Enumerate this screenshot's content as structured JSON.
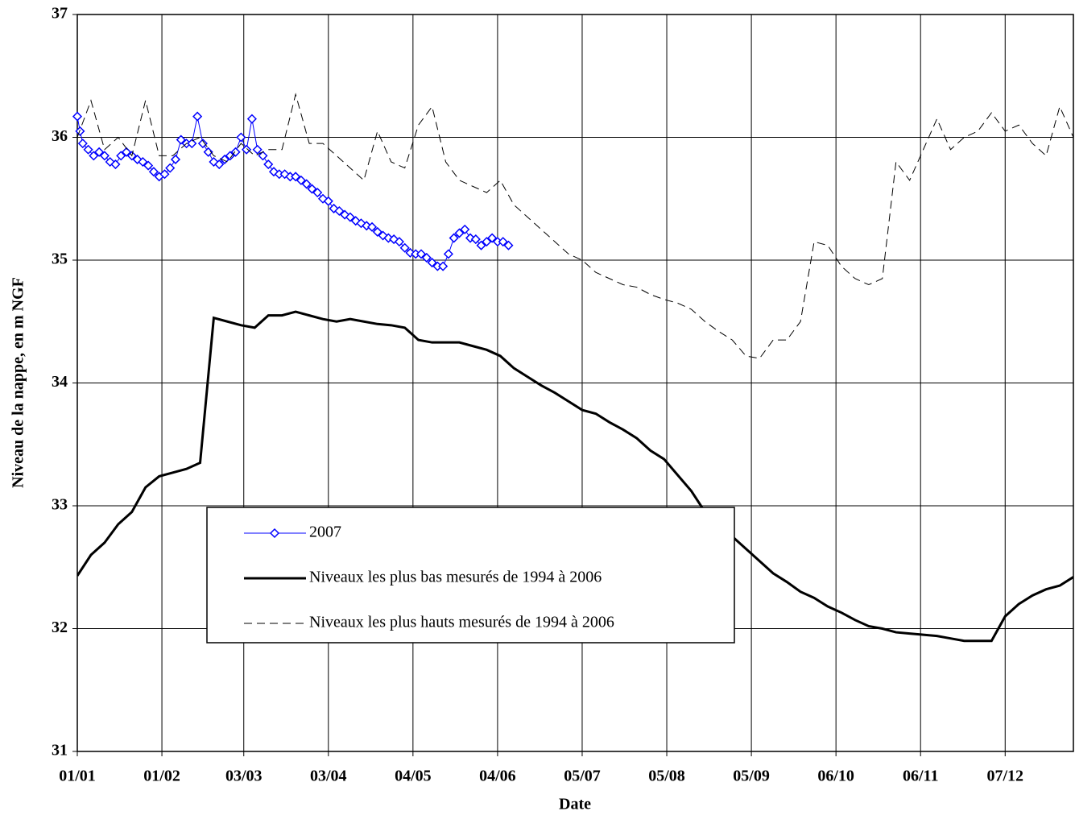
{
  "chart_data": {
    "type": "line",
    "x_label": "Date",
    "y_label": "Niveau de la nappe, en m NGF",
    "xlim": [
      0,
      365
    ],
    "ylim": [
      31,
      37
    ],
    "xticks": [
      {
        "value": 0,
        "label": "01/01"
      },
      {
        "value": 31,
        "label": "01/02"
      },
      {
        "value": 61,
        "label": "03/03"
      },
      {
        "value": 92,
        "label": "03/04"
      },
      {
        "value": 123,
        "label": "04/05"
      },
      {
        "value": 154,
        "label": "04/06"
      },
      {
        "value": 185,
        "label": "05/07"
      },
      {
        "value": 216,
        "label": "05/08"
      },
      {
        "value": 247,
        "label": "05/09"
      },
      {
        "value": 278,
        "label": "06/10"
      },
      {
        "value": 309,
        "label": "06/11"
      },
      {
        "value": 340,
        "label": "07/12"
      }
    ],
    "yticks": [
      31,
      32,
      33,
      34,
      35,
      36,
      37
    ],
    "grid": true,
    "series": [
      {
        "name": "2007",
        "color": "#0000ff",
        "line_style": "solid",
        "line_width": 1,
        "marker": "diamond",
        "x": [
          0,
          1,
          2,
          4,
          6,
          8,
          10,
          12,
          14,
          16,
          18,
          20,
          22,
          24,
          26,
          28,
          30,
          32,
          34,
          36,
          38,
          40,
          42,
          44,
          46,
          48,
          50,
          52,
          54,
          56,
          58,
          60,
          62,
          64,
          66,
          68,
          70,
          72,
          74,
          76,
          78,
          80,
          82,
          84,
          86,
          88,
          90,
          92,
          94,
          96,
          98,
          100,
          102,
          104,
          106,
          108,
          110,
          112,
          114,
          116,
          118,
          120,
          122,
          124,
          126,
          128,
          130,
          132,
          134,
          136,
          138,
          140,
          142,
          144,
          146,
          148,
          150,
          152,
          154,
          156,
          158
        ],
        "values": [
          36.17,
          36.05,
          35.95,
          35.9,
          35.85,
          35.88,
          35.85,
          35.8,
          35.78,
          35.85,
          35.88,
          35.85,
          35.82,
          35.8,
          35.77,
          35.72,
          35.68,
          35.7,
          35.75,
          35.82,
          35.98,
          35.95,
          35.95,
          36.17,
          35.95,
          35.88,
          35.8,
          35.78,
          35.82,
          35.85,
          35.88,
          36.0,
          35.9,
          36.15,
          35.9,
          35.85,
          35.78,
          35.72,
          35.7,
          35.7,
          35.68,
          35.68,
          35.65,
          35.62,
          35.58,
          35.55,
          35.5,
          35.48,
          35.42,
          35.4,
          35.37,
          35.35,
          35.32,
          35.3,
          35.28,
          35.27,
          35.23,
          35.2,
          35.18,
          35.17,
          35.15,
          35.1,
          35.06,
          35.05,
          35.05,
          35.02,
          34.98,
          34.95,
          34.95,
          35.05,
          35.18,
          35.22,
          35.25,
          35.18,
          35.17,
          35.12,
          35.15,
          35.18,
          35.15,
          35.15,
          35.12
        ]
      },
      {
        "name": "Niveaux les plus bas mesurés de 1994 à 2006",
        "color": "#000000",
        "line_style": "solid",
        "line_width": 3,
        "marker": "none",
        "x": [
          0,
          5,
          10,
          15,
          20,
          25,
          30,
          35,
          40,
          45,
          50,
          55,
          60,
          65,
          70,
          75,
          80,
          85,
          90,
          95,
          100,
          105,
          110,
          115,
          120,
          125,
          130,
          135,
          140,
          145,
          150,
          155,
          160,
          165,
          170,
          175,
          180,
          185,
          190,
          195,
          200,
          205,
          210,
          215,
          220,
          225,
          230,
          235,
          240,
          245,
          250,
          255,
          260,
          265,
          270,
          275,
          280,
          285,
          290,
          295,
          300,
          305,
          310,
          315,
          320,
          325,
          330,
          335,
          340,
          345,
          350,
          355,
          360,
          365
        ],
        "values": [
          32.43,
          32.6,
          32.7,
          32.85,
          32.95,
          33.15,
          33.24,
          33.27,
          33.3,
          33.35,
          34.53,
          34.5,
          34.47,
          34.45,
          34.55,
          34.55,
          34.58,
          34.55,
          34.52,
          34.5,
          34.52,
          34.5,
          34.48,
          34.47,
          34.45,
          34.35,
          34.33,
          34.33,
          34.33,
          34.3,
          34.27,
          34.22,
          34.12,
          34.05,
          33.98,
          33.92,
          33.85,
          33.78,
          33.75,
          33.68,
          33.62,
          33.55,
          33.45,
          33.38,
          33.25,
          33.12,
          32.95,
          32.85,
          32.75,
          32.65,
          32.55,
          32.45,
          32.38,
          32.3,
          32.25,
          32.18,
          32.13,
          32.07,
          32.02,
          32.0,
          31.97,
          31.96,
          31.95,
          31.94,
          31.92,
          31.9,
          31.9,
          31.9,
          32.1,
          32.2,
          32.27,
          32.32,
          32.35,
          32.42
        ]
      },
      {
        "name": "Niveaux les plus hauts mesurés de 1994 à 2006",
        "color": "#000000",
        "line_style": "dashed",
        "line_width": 1,
        "marker": "none",
        "x": [
          0,
          5,
          10,
          15,
          20,
          25,
          30,
          35,
          40,
          45,
          50,
          55,
          60,
          65,
          70,
          75,
          80,
          85,
          90,
          95,
          100,
          105,
          110,
          115,
          120,
          125,
          130,
          135,
          140,
          145,
          150,
          155,
          160,
          165,
          170,
          175,
          180,
          185,
          190,
          195,
          200,
          205,
          210,
          215,
          220,
          225,
          230,
          235,
          240,
          245,
          250,
          255,
          260,
          265,
          270,
          275,
          280,
          285,
          290,
          295,
          300,
          305,
          310,
          315,
          320,
          325,
          330,
          335,
          340,
          345,
          350,
          355,
          360,
          365
        ],
        "values": [
          36.0,
          36.3,
          35.9,
          36.0,
          35.85,
          36.3,
          35.85,
          35.85,
          35.95,
          36.0,
          35.85,
          35.8,
          35.95,
          35.85,
          35.9,
          35.9,
          36.35,
          35.95,
          35.95,
          35.85,
          35.75,
          35.65,
          36.05,
          35.8,
          35.75,
          36.1,
          36.25,
          35.8,
          35.65,
          35.6,
          35.55,
          35.65,
          35.45,
          35.35,
          35.25,
          35.15,
          35.05,
          35.0,
          34.9,
          34.85,
          34.8,
          34.78,
          34.72,
          34.68,
          34.65,
          34.6,
          34.5,
          34.42,
          34.35,
          34.22,
          34.2,
          34.35,
          34.35,
          34.5,
          35.15,
          35.12,
          34.95,
          34.85,
          34.8,
          34.85,
          35.8,
          35.65,
          35.9,
          36.15,
          35.9,
          36.0,
          36.05,
          36.2,
          36.05,
          36.1,
          35.95,
          35.85,
          36.25,
          36.0
        ]
      }
    ]
  }
}
